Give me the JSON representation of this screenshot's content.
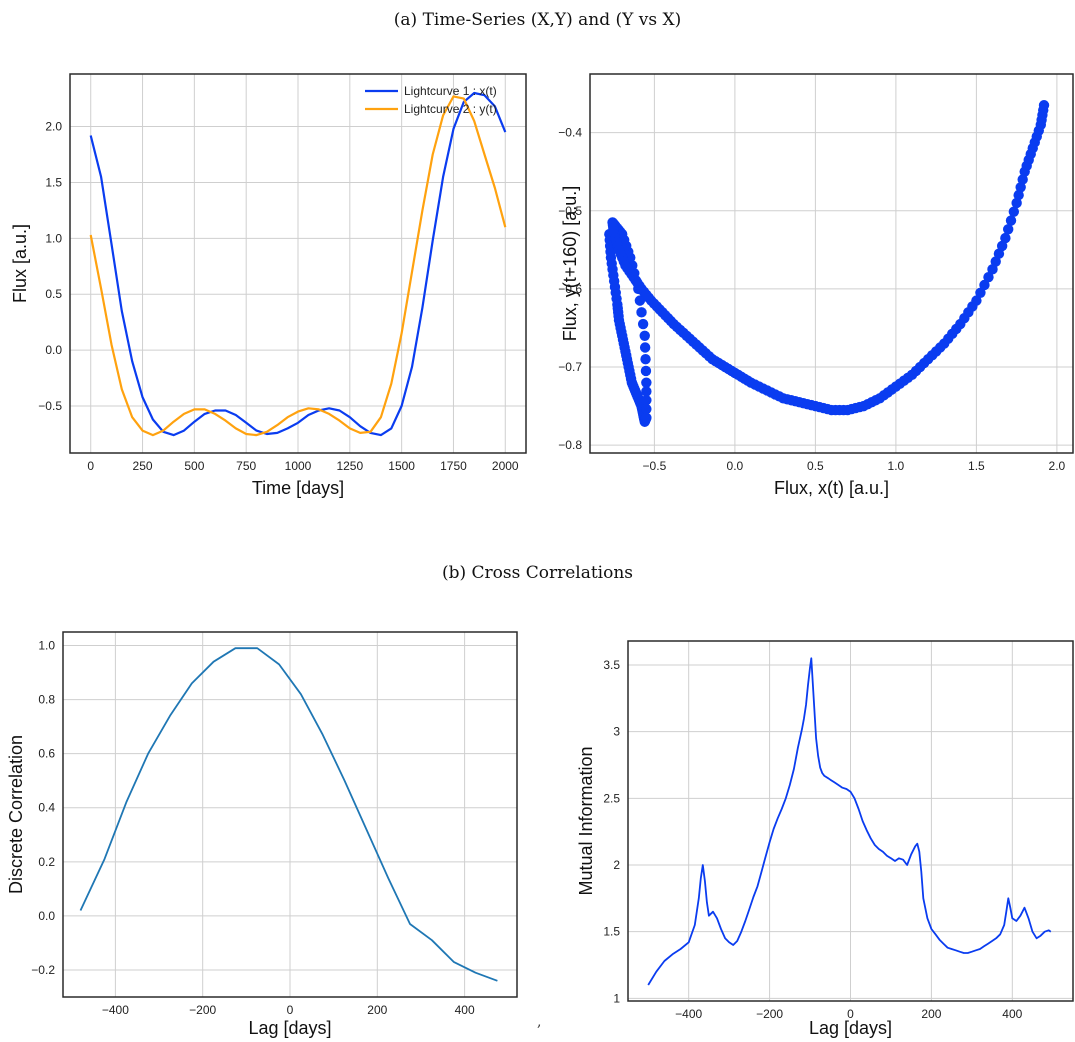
{
  "captions": {
    "a": "(a) Time-Series (X,Y) and (Y vs X)",
    "b": "(b) Cross Correlations"
  },
  "stray_mark": ",",
  "colors": {
    "blue": "#0a3cf0",
    "orange": "#ffa20f",
    "steelblue": "#1f77b4",
    "grid": "#cfcfcf",
    "frame": "#2a2a2a"
  },
  "chart_data": [
    {
      "type": "line",
      "xlabel": "Time [days]",
      "ylabel": "Flux [a.u.]",
      "xlim": [
        -100,
        2100
      ],
      "ylim": [
        -0.92,
        2.47
      ],
      "xticks": [
        0,
        250,
        500,
        750,
        1000,
        1250,
        1500,
        1750,
        2000
      ],
      "yticks": [
        -0.5,
        0.0,
        0.5,
        1.0,
        1.5,
        2.0
      ],
      "yticklabels": [
        "−0.5",
        "0.0",
        "0.5",
        "1.0",
        "1.5",
        "2.0"
      ],
      "grid": true,
      "legend_position": "top-right",
      "series": [
        {
          "name": "Lightcurve 1 : x(t)",
          "color": "#0a3cf0",
          "x": [
            0,
            50,
            100,
            150,
            200,
            250,
            300,
            350,
            400,
            450,
            500,
            550,
            600,
            650,
            700,
            750,
            800,
            850,
            900,
            950,
            1000,
            1050,
            1100,
            1150,
            1200,
            1250,
            1300,
            1350,
            1400,
            1450,
            1500,
            1550,
            1600,
            1650,
            1700,
            1750,
            1800,
            1850,
            1900,
            1950,
            2000
          ],
          "y": [
            1.92,
            1.55,
            0.95,
            0.35,
            -0.1,
            -0.42,
            -0.62,
            -0.73,
            -0.76,
            -0.72,
            -0.64,
            -0.57,
            -0.54,
            -0.54,
            -0.58,
            -0.65,
            -0.72,
            -0.75,
            -0.74,
            -0.7,
            -0.65,
            -0.58,
            -0.54,
            -0.52,
            -0.54,
            -0.6,
            -0.68,
            -0.74,
            -0.76,
            -0.7,
            -0.5,
            -0.15,
            0.38,
            0.98,
            1.55,
            1.98,
            2.22,
            2.3,
            2.28,
            2.18,
            1.95
          ]
        },
        {
          "name": "Lightcurve 2 : y(t)",
          "color": "#ffa20f",
          "x": [
            0,
            50,
            100,
            150,
            200,
            250,
            300,
            350,
            400,
            450,
            500,
            550,
            600,
            650,
            700,
            750,
            800,
            850,
            900,
            950,
            1000,
            1050,
            1100,
            1150,
            1200,
            1250,
            1300,
            1350,
            1400,
            1450,
            1500,
            1550,
            1600,
            1650,
            1700,
            1750,
            1800,
            1850,
            1900,
            1950,
            2000
          ],
          "y": [
            1.03,
            0.55,
            0.05,
            -0.35,
            -0.6,
            -0.72,
            -0.76,
            -0.72,
            -0.64,
            -0.57,
            -0.53,
            -0.53,
            -0.57,
            -0.63,
            -0.7,
            -0.75,
            -0.76,
            -0.73,
            -0.67,
            -0.6,
            -0.55,
            -0.52,
            -0.53,
            -0.57,
            -0.63,
            -0.7,
            -0.74,
            -0.73,
            -0.6,
            -0.3,
            0.15,
            0.7,
            1.25,
            1.75,
            2.1,
            2.27,
            2.25,
            2.05,
            1.75,
            1.45,
            1.1
          ]
        }
      ]
    },
    {
      "type": "scatter",
      "xlabel": "Flux, x(t) [a.u.]",
      "ylabel": "Flux, y(t+160) [a.u.]",
      "xlim": [
        -0.9,
        2.1
      ],
      "ylim": [
        -0.81,
        -0.325
      ],
      "xticks": [
        -0.5,
        0.0,
        0.5,
        1.0,
        1.5,
        2.0
      ],
      "xticklabels": [
        "−0.5",
        "0.0",
        "0.5",
        "1.0",
        "1.5",
        "2.0"
      ],
      "yticks": [
        -0.8,
        -0.7,
        -0.6,
        -0.5,
        -0.4
      ],
      "yticklabels": [
        "−0.8",
        "−0.7",
        "−0.6",
        "−0.5",
        "−0.4"
      ],
      "grid": true,
      "color": "#0a3cf0",
      "x": [
        -0.78,
        -0.77,
        -0.75,
        -0.73,
        -0.72,
        -0.7,
        -0.68,
        -0.66,
        -0.64,
        -0.62,
        -0.6,
        -0.58,
        -0.57,
        -0.56,
        -0.55,
        -0.55,
        -0.56,
        -0.6,
        -0.65,
        -0.7,
        -0.74,
        -0.76,
        -0.75,
        -0.72,
        -0.68,
        -0.63,
        -0.58,
        -0.52,
        -0.45,
        -0.38,
        -0.3,
        -0.22,
        -0.14,
        -0.06,
        0.02,
        0.1,
        0.2,
        0.3,
        0.4,
        0.5,
        0.6,
        0.7,
        0.8,
        0.9,
        1.0,
        1.1,
        1.2,
        1.3,
        1.4,
        1.5,
        1.6,
        1.68,
        1.75,
        1.8,
        1.85,
        1.9,
        1.92
      ],
      "y": [
        -0.53,
        -0.56,
        -0.59,
        -0.62,
        -0.64,
        -0.66,
        -0.68,
        -0.7,
        -0.72,
        -0.73,
        -0.74,
        -0.75,
        -0.76,
        -0.77,
        -0.765,
        -0.72,
        -0.66,
        -0.6,
        -0.56,
        -0.53,
        -0.52,
        -0.515,
        -0.53,
        -0.55,
        -0.57,
        -0.585,
        -0.6,
        -0.615,
        -0.63,
        -0.645,
        -0.66,
        -0.675,
        -0.69,
        -0.7,
        -0.71,
        -0.72,
        -0.73,
        -0.74,
        -0.745,
        -0.75,
        -0.755,
        -0.755,
        -0.75,
        -0.74,
        -0.725,
        -0.71,
        -0.69,
        -0.67,
        -0.645,
        -0.615,
        -0.575,
        -0.535,
        -0.49,
        -0.45,
        -0.42,
        -0.39,
        -0.365
      ]
    },
    {
      "type": "line",
      "xlabel": "Lag [days]",
      "ylabel": "Discrete Correlation",
      "xlim": [
        -520,
        520
      ],
      "ylim": [
        -0.3,
        1.05
      ],
      "xticks": [
        -400,
        -200,
        0,
        200,
        400
      ],
      "xticklabels": [
        "−400",
        "−200",
        "0",
        "200",
        "400"
      ],
      "yticks": [
        -0.2,
        0.0,
        0.2,
        0.4,
        0.6,
        0.8,
        1.0
      ],
      "yticklabels": [
        "−0.2",
        "0.0",
        "0.2",
        "0.4",
        "0.6",
        "0.8",
        "1.0"
      ],
      "grid": true,
      "series": [
        {
          "color": "#1f77b4",
          "x": [
            -480,
            -425,
            -375,
            -325,
            -275,
            -225,
            -175,
            -125,
            -75,
            -25,
            25,
            75,
            125,
            175,
            225,
            275,
            325,
            375,
            425,
            475
          ],
          "y": [
            0.02,
            0.21,
            0.42,
            0.6,
            0.74,
            0.86,
            0.94,
            0.99,
            0.99,
            0.93,
            0.82,
            0.67,
            0.5,
            0.32,
            0.14,
            -0.03,
            -0.09,
            -0.17,
            -0.21,
            -0.24
          ]
        }
      ]
    },
    {
      "type": "line",
      "xlabel": "Lag [days]",
      "ylabel": "Mutual Information",
      "xlim": [
        -550,
        550
      ],
      "ylim": [
        0.98,
        3.68
      ],
      "xticks": [
        -400,
        -200,
        0,
        200,
        400
      ],
      "xticklabels": [
        "−400",
        "−200",
        "0",
        "200",
        "400"
      ],
      "yticks": [
        1.0,
        1.5,
        2.0,
        2.5,
        3.0,
        3.5
      ],
      "grid": true,
      "series": [
        {
          "color": "#0a3cf0",
          "x": [
            -500,
            -480,
            -460,
            -440,
            -420,
            -400,
            -385,
            -375,
            -370,
            -365,
            -360,
            -355,
            -350,
            -340,
            -330,
            -320,
            -310,
            -300,
            -290,
            -280,
            -270,
            -260,
            -250,
            -240,
            -230,
            -220,
            -210,
            -200,
            -190,
            -180,
            -170,
            -160,
            -150,
            -140,
            -130,
            -120,
            -115,
            -110,
            -105,
            -100,
            -97,
            -95,
            -92,
            -88,
            -85,
            -80,
            -75,
            -70,
            -65,
            -60,
            -55,
            -50,
            -40,
            -30,
            -20,
            -10,
            0,
            10,
            20,
            30,
            40,
            50,
            60,
            70,
            80,
            90,
            100,
            110,
            120,
            130,
            140,
            150,
            160,
            165,
            170,
            175,
            180,
            190,
            200,
            210,
            220,
            230,
            240,
            250,
            260,
            270,
            280,
            290,
            300,
            310,
            320,
            330,
            340,
            350,
            360,
            370,
            380,
            385,
            390,
            395,
            400,
            410,
            420,
            430,
            440,
            450,
            460,
            470,
            480,
            490,
            495
          ],
          "y": [
            1.1,
            1.2,
            1.28,
            1.33,
            1.37,
            1.42,
            1.55,
            1.75,
            1.9,
            2.0,
            1.88,
            1.72,
            1.62,
            1.65,
            1.6,
            1.52,
            1.45,
            1.42,
            1.4,
            1.43,
            1.5,
            1.58,
            1.67,
            1.76,
            1.84,
            1.95,
            2.06,
            2.17,
            2.27,
            2.35,
            2.42,
            2.5,
            2.6,
            2.72,
            2.88,
            3.02,
            3.1,
            3.2,
            3.35,
            3.48,
            3.55,
            3.45,
            3.3,
            3.1,
            2.95,
            2.82,
            2.73,
            2.69,
            2.67,
            2.66,
            2.65,
            2.64,
            2.62,
            2.6,
            2.58,
            2.57,
            2.55,
            2.5,
            2.42,
            2.33,
            2.26,
            2.2,
            2.15,
            2.12,
            2.1,
            2.07,
            2.05,
            2.03,
            2.05,
            2.04,
            2.0,
            2.08,
            2.14,
            2.16,
            2.1,
            1.95,
            1.75,
            1.6,
            1.52,
            1.48,
            1.44,
            1.41,
            1.38,
            1.37,
            1.36,
            1.35,
            1.34,
            1.34,
            1.35,
            1.36,
            1.37,
            1.39,
            1.41,
            1.43,
            1.45,
            1.48,
            1.55,
            1.65,
            1.75,
            1.68,
            1.6,
            1.58,
            1.62,
            1.68,
            1.6,
            1.5,
            1.45,
            1.47,
            1.5,
            1.51,
            1.5
          ]
        }
      ]
    }
  ]
}
